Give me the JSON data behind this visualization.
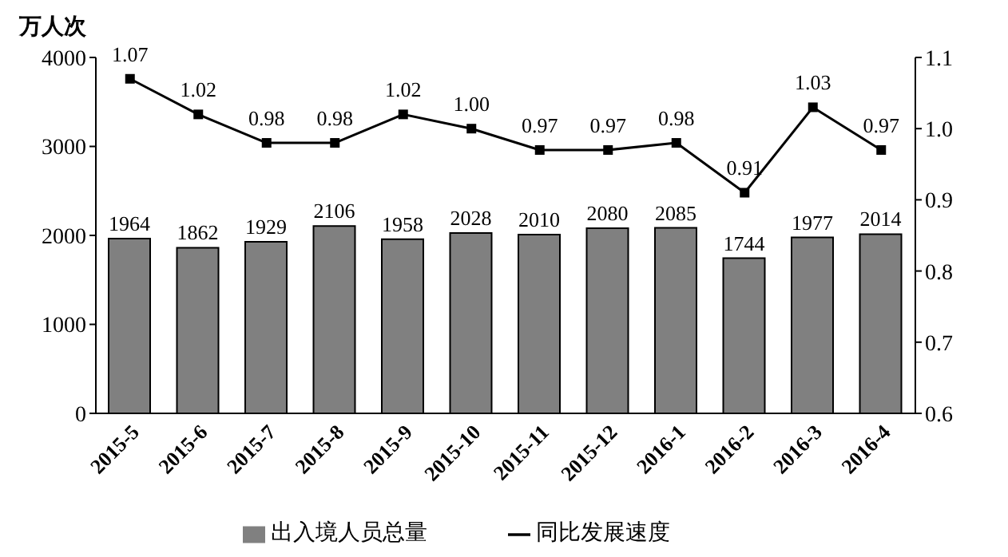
{
  "chart_data": {
    "type": "bar",
    "ylabel": "万人次",
    "categories": [
      "2015-5",
      "2015-6",
      "2015-7",
      "2015-8",
      "2015-9",
      "2015-10",
      "2015-11",
      "2015-12",
      "2016-1",
      "2016-2",
      "2016-3",
      "2016-4"
    ],
    "series": [
      {
        "name": "出入境人员总量",
        "color": "#808080",
        "values": [
          1964,
          1862,
          1929,
          2106,
          1958,
          2028,
          2010,
          2080,
          2085,
          1744,
          1977,
          2014
        ]
      },
      {
        "name": "同比发展速度",
        "type": "line",
        "axis": "y2",
        "color": "#000000",
        "values": [
          1.07,
          1.02,
          0.98,
          0.98,
          1.02,
          1.0,
          0.97,
          0.97,
          0.98,
          0.91,
          1.03,
          0.97
        ],
        "value_labels": [
          "1.07",
          "1.02",
          "0.98",
          "0.98",
          "1.02",
          "1.00",
          "0.97",
          "0.97",
          "0.98",
          "0.91",
          "1.03",
          "0.97"
        ]
      }
    ],
    "ylim": [
      0,
      4000
    ],
    "yticks": [
      0,
      1000,
      2000,
      3000,
      4000
    ],
    "y2lim": [
      0.6,
      1.1
    ],
    "y2ticks": [
      0.6,
      0.7,
      0.8,
      0.9,
      {
        "value": 1.0,
        "label": "1.0"
      },
      1.1
    ],
    "data_labels": true,
    "marker": "square",
    "line_style": "solid",
    "grid": false,
    "legend": "bottom"
  }
}
